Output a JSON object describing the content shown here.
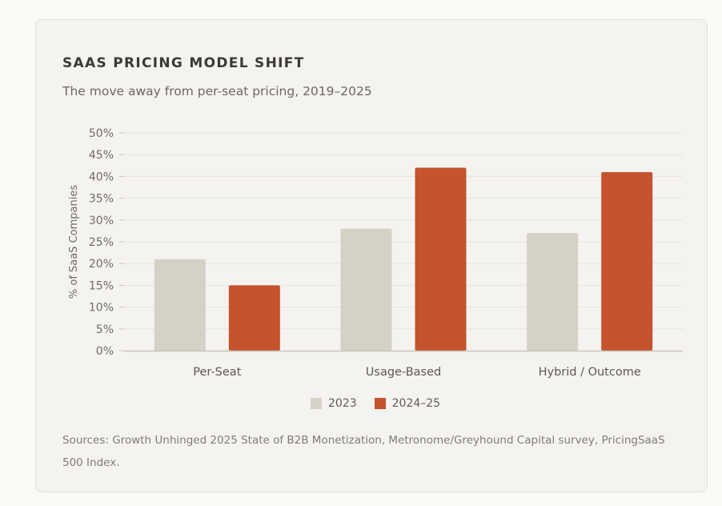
{
  "header": {
    "title": "SAAS PRICING MODEL SHIFT",
    "subtitle": "The move away from per-seat pricing, 2019–2025"
  },
  "colors": {
    "series_2023": "#d5d1c6",
    "series_2025": "#c4532e",
    "grid": "#e6e3dd",
    "axis": "#c9c5be",
    "tick_text": "#6f6c66"
  },
  "chart_data": {
    "type": "bar",
    "title": "SAAS PRICING MODEL SHIFT",
    "subtitle": "The move away from per-seat pricing, 2019–2025",
    "categories": [
      "Per-Seat",
      "Usage-Based",
      "Hybrid / Outcome"
    ],
    "series": [
      {
        "name": "2023",
        "values": [
          21,
          28,
          27
        ]
      },
      {
        "name": "2024–25",
        "values": [
          15,
          42,
          41
        ]
      }
    ],
    "xlabel": "",
    "ylabel": "% of SaaS Companies",
    "ylim": [
      0,
      50
    ],
    "yticks": [
      0,
      5,
      10,
      15,
      20,
      25,
      30,
      35,
      40,
      45,
      50
    ],
    "ytick_suffix": "%",
    "grid": true,
    "legend_position": "bottom-center"
  },
  "footer": {
    "sources": "Sources: Growth Unhinged 2025 State of B2B Monetization, Metronome/Greyhound Capital survey, PricingSaaS 500 Index."
  }
}
